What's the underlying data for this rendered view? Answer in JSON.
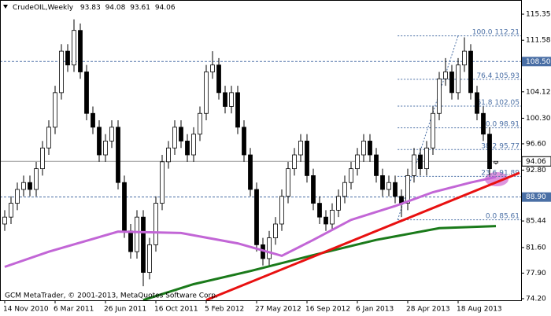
{
  "chart_data": {
    "type": "candlestick",
    "title": "CrudeOIL,Weekly",
    "footer": "GCM MetaTrader, © 2001-2013, MetaQuotes Software Corp.",
    "open": [
      85,
      86,
      88,
      90,
      91,
      90,
      93,
      96,
      99,
      104,
      110,
      108,
      113,
      107,
      101,
      99,
      95,
      97,
      99,
      91,
      84,
      81,
      86,
      78,
      82,
      88,
      94,
      96,
      99,
      97,
      95,
      98,
      101,
      107,
      108,
      104,
      102,
      104,
      99,
      95,
      90,
      82,
      80,
      83,
      85,
      89,
      93,
      95,
      97,
      92,
      88,
      86,
      85,
      87,
      89,
      91,
      93,
      95,
      97,
      95,
      92,
      90,
      91,
      89,
      88,
      92,
      95,
      93,
      96,
      101,
      106,
      107,
      104,
      108,
      110,
      104,
      101,
      98,
      93.83
    ],
    "high": [
      87,
      89,
      91,
      92,
      92,
      94,
      97,
      100,
      105,
      111,
      111,
      114.6,
      114,
      108,
      102,
      100,
      98,
      100,
      100,
      92,
      85,
      87,
      87,
      83,
      89,
      95,
      97,
      100,
      100,
      98,
      99,
      102,
      108,
      110,
      109,
      105,
      105,
      105,
      100,
      96,
      91,
      83,
      84,
      86,
      90,
      94,
      96,
      98,
      98,
      93,
      89,
      87,
      88,
      90,
      92,
      94,
      96,
      98,
      98,
      96,
      93,
      92,
      92,
      90,
      93,
      96,
      96,
      97,
      102,
      107,
      109,
      108,
      109,
      112,
      111,
      105,
      102,
      99,
      94.08
    ],
    "low": [
      84,
      85,
      87,
      89,
      89,
      89,
      92,
      95,
      98,
      103,
      107,
      107,
      106,
      100,
      98,
      94,
      94,
      96,
      90,
      83,
      80,
      80,
      76,
      77,
      81,
      87,
      93,
      95,
      96,
      94,
      94,
      97,
      100,
      106,
      103,
      101,
      101,
      98,
      94,
      89,
      81,
      79,
      79,
      82,
      84,
      88,
      92,
      94,
      91,
      87,
      85,
      84,
      84,
      86,
      88,
      90,
      92,
      94,
      94,
      91,
      89,
      89,
      88,
      86,
      87,
      91,
      92,
      92,
      95,
      100,
      105,
      103,
      103,
      107,
      103,
      100,
      97,
      92,
      93.61
    ],
    "close": [
      86,
      88,
      90,
      91,
      90,
      93,
      96,
      99,
      104,
      110,
      108,
      113,
      107,
      101,
      99,
      95,
      97,
      99,
      91,
      84,
      81,
      86,
      78,
      82,
      88,
      94,
      96,
      99,
      97,
      95,
      98,
      101,
      107,
      108,
      104,
      102,
      104,
      99,
      95,
      90,
      82,
      80,
      83,
      85,
      89,
      93,
      95,
      97,
      92,
      88,
      86,
      85,
      87,
      89,
      91,
      93,
      95,
      97,
      95,
      92,
      90,
      91,
      89,
      88,
      92,
      95,
      93,
      96,
      101,
      106,
      107,
      104,
      108,
      110,
      104,
      101,
      98,
      93,
      94.06
    ],
    "ylim": [
      73.97,
      117.4
    ],
    "yticks": [
      {
        "value": 74.2,
        "label": "74.20"
      },
      {
        "value": 77.9,
        "label": "77.90"
      },
      {
        "value": 81.6,
        "label": "81.60"
      },
      85.44,
      {
        "value": 92.8,
        "label": "92.80"
      },
      {
        "value": 96.6,
        "label": "96.60"
      },
      {
        "value": 100.3,
        "label": "100.30"
      },
      104.12,
      111.58,
      115.35
    ],
    "xlim": [
      -0.75,
      82
    ],
    "xticks": [
      {
        "value": 0,
        "label": "14 Nov 2010"
      },
      {
        "value": 8,
        "label": "6 Mar 2011"
      },
      {
        "value": 16,
        "label": "26 Jun 2011"
      },
      {
        "value": 24,
        "label": "16 Oct 2011"
      },
      {
        "value": 32,
        "label": "5 Feb 2012"
      },
      {
        "value": 40,
        "label": "27 May 2012"
      },
      {
        "value": 48,
        "label": "16 Sep 2012"
      },
      {
        "value": 56,
        "label": "6 Jan 2013"
      },
      {
        "value": 64,
        "label": "28 Apr 2013"
      },
      {
        "value": 72,
        "label": "18 Aug 2013"
      }
    ],
    "hlines": [
      {
        "value": 108.5,
        "label": "108.50",
        "color": "#4a6fa5"
      },
      {
        "value": 88.9,
        "label": "88.90",
        "color": "#4a6fa5"
      }
    ],
    "moving_averages": [
      {
        "color": "#c266d6",
        "x": [
          0,
          7,
          18,
          28,
          37,
          44,
          49,
          55,
          62,
          68,
          74,
          78
        ],
        "values": [
          78.8,
          81.0,
          83.9,
          83.7,
          82.2,
          80.4,
          82.7,
          85.6,
          87.6,
          89.6,
          91.0,
          91.8
        ]
      },
      {
        "color": "#1a7a1a",
        "x": [
          22,
          30,
          39,
          49,
          59,
          69,
          78
        ],
        "values": [
          74.0,
          76.3,
          78.2,
          80.5,
          82.7,
          84.4,
          84.7
        ]
      }
    ],
    "trendline": {
      "color": "#e81010",
      "x": [
        32,
        81.75
      ],
      "values": [
        74.0,
        92.4
      ]
    },
    "fibo": {
      "color": "#4a6fa5",
      "x": [
        62.4,
        72
      ],
      "levels": [
        {
          "level": "100.0",
          "price": 112.21
        },
        {
          "level": "76.4",
          "price": 105.93
        },
        {
          "level": "61.8",
          "price": 102.05
        },
        {
          "level": "50.0",
          "price": 98.91
        },
        {
          "level": "38.2",
          "price": 95.77
        },
        {
          "level": "23.6",
          "price": 91.89
        },
        {
          "level": "0.0",
          "price": 85.61
        }
      ]
    }
  }
}
